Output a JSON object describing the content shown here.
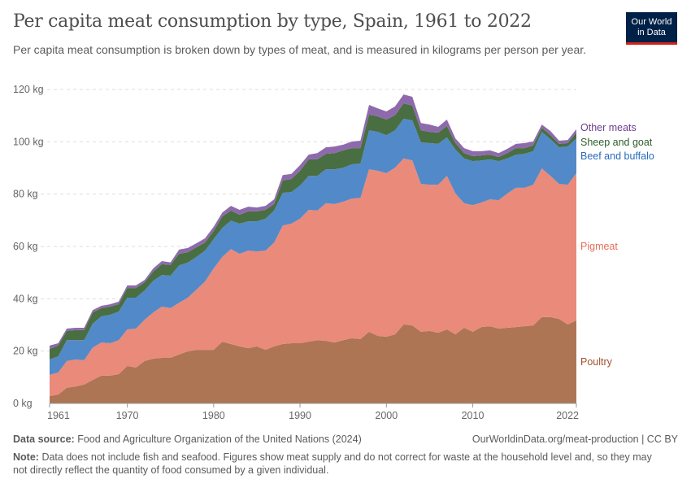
{
  "header": {
    "title": "Per capita meat consumption by type, Spain, 1961 to 2022",
    "subtitle": "Per capita meat consumption is broken down by types of meat, and is measured in kilograms per person per year.",
    "logo_line1": "Our World",
    "logo_line2": "in Data"
  },
  "footer": {
    "source_label": "Data source:",
    "source_text": "Food and Agriculture Organization of the United Nations (2024)",
    "url": "OurWorldinData.org/meat-production | CC BY",
    "note_label": "Note:",
    "note_text": "Data does not include fish and seafood. Figures show meat supply and do not correct for waste at the household level and, so they may not directly reflect the quantity of food consumed by a given individual."
  },
  "chart_data": {
    "type": "area",
    "stacked": true,
    "title": "Per capita meat consumption by type, Spain, 1961 to 2022",
    "ylim": [
      0,
      120
    ],
    "yticks": [
      0,
      20,
      40,
      60,
      80,
      100,
      120
    ],
    "ytick_labels": [
      "0 kg",
      "20 kg",
      "40 kg",
      "60 kg",
      "80 kg",
      "100 kg",
      "120 kg"
    ],
    "xticks": [
      1961,
      1970,
      1980,
      1990,
      2000,
      2010,
      2022
    ],
    "xtick_labels": [
      "1961",
      "1970",
      "1980",
      "1990",
      "2000",
      "2010",
      "2022"
    ],
    "grid": "horizontal dashed",
    "legend": "right (inline labels)",
    "x_start": 1961,
    "x_end": 2022,
    "series": [
      {
        "name": "Poultry",
        "color": "#ad7553",
        "label_color": "#a0522d",
        "values": [
          2.8,
          3.4,
          6,
          6.5,
          7.2,
          9,
          10.6,
          10.6,
          11.2,
          14.3,
          13.7,
          16.2,
          17.1,
          17.4,
          17.4,
          18.7,
          19.9,
          20.5,
          20.5,
          20.5,
          23.6,
          22.7,
          21.8,
          21.1,
          21.8,
          20.5,
          21.8,
          22.7,
          23,
          23,
          23.6,
          24.2,
          23.9,
          23.3,
          24.2,
          24.9,
          24.6,
          27.4,
          25.8,
          25.5,
          26.4,
          30.2,
          29.8,
          27.4,
          27.7,
          27,
          28.3,
          26.4,
          28.9,
          27.4,
          29.2,
          29.5,
          28.6,
          28.9,
          29.2,
          29.5,
          29.8,
          33,
          33,
          32.3,
          30.2,
          31.7
        ]
      },
      {
        "name": "Pigmeat",
        "color": "#ea8a7a",
        "label_color": "#e56e5a",
        "values": [
          8.1,
          8.4,
          10.2,
          10.3,
          9.3,
          12.4,
          12.7,
          12.4,
          13,
          14,
          14.9,
          15.8,
          17.7,
          19.6,
          19,
          19.8,
          20.5,
          23,
          26.1,
          31.1,
          32.4,
          36.3,
          35.4,
          37.3,
          36.3,
          37.9,
          39.7,
          45.3,
          45.7,
          47.6,
          50.4,
          49.5,
          52.6,
          52.9,
          52.9,
          53.4,
          54,
          62.1,
          63.1,
          62.5,
          63.7,
          63.4,
          63.1,
          56.5,
          55.9,
          56.6,
          58.7,
          53.8,
          47.6,
          48.4,
          47.6,
          48.5,
          49.1,
          51.3,
          53.2,
          52.9,
          53.8,
          56.8,
          54,
          51.6,
          53.4,
          56.3
        ]
      },
      {
        "name": "Beef and buffalo",
        "color": "#5289c8",
        "label_color": "#286bbb",
        "values": [
          5.9,
          6.2,
          8,
          7.4,
          7.7,
          9.1,
          10,
          10.9,
          10.9,
          12.1,
          11.8,
          11.2,
          12.1,
          12.1,
          12.4,
          14.3,
          13.4,
          12.5,
          11.8,
          11.2,
          11.1,
          10.9,
          11.5,
          11.2,
          11.5,
          12.2,
          12.2,
          12.5,
          12.1,
          12.7,
          13,
          13.3,
          13,
          13.3,
          13,
          13.1,
          13.1,
          14.9,
          14.9,
          14.5,
          14.3,
          15.2,
          15.3,
          15.9,
          15.9,
          15.6,
          14.7,
          16.8,
          17.1,
          16.8,
          16.1,
          15.3,
          14.9,
          13.4,
          12.7,
          13,
          12.8,
          14,
          14,
          14,
          14.6,
          13.3
        ]
      },
      {
        "name": "Sheep and goat",
        "color": "#486e42",
        "label_color": "#2c5d2a",
        "values": [
          4,
          4.1,
          3.5,
          3.8,
          3.8,
          4.3,
          3.1,
          3.1,
          2.8,
          3.7,
          3.7,
          3.1,
          3.5,
          4.1,
          4.1,
          4.4,
          4,
          3.7,
          3.1,
          3.1,
          4.4,
          3.8,
          3.4,
          3.8,
          3.8,
          3.4,
          2.5,
          4.7,
          5,
          5.6,
          6.3,
          6.3,
          5.9,
          6.2,
          6.6,
          6.2,
          5.9,
          6,
          5.9,
          6,
          5.7,
          5.9,
          5.6,
          4.6,
          4.3,
          4.3,
          4.3,
          2.5,
          2.1,
          1.9,
          1.9,
          1.8,
          1.6,
          2.1,
          2.5,
          2.2,
          2.2,
          1.6,
          1.5,
          1.3,
          1.3,
          2.2
        ]
      },
      {
        "name": "Other meats",
        "color": "#8e6aac",
        "label_color": "#6d3e91",
        "values": [
          1.3,
          0.9,
          0.9,
          0.9,
          0.9,
          0.9,
          0.9,
          0.9,
          1,
          1,
          1,
          0.9,
          1.2,
          1.2,
          1,
          1.6,
          1.6,
          1.5,
          1.6,
          1.6,
          1.5,
          1.8,
          1.9,
          1.8,
          1.5,
          1.5,
          1.8,
          2.1,
          1.9,
          2.2,
          1.8,
          2.4,
          2.5,
          2.5,
          2.2,
          2.5,
          2.8,
          3.7,
          3.1,
          3.1,
          3.4,
          3.4,
          3.4,
          2.8,
          2.8,
          2.2,
          2.5,
          1.8,
          1.9,
          1.9,
          1.6,
          1.6,
          1.5,
          1.6,
          1.6,
          1.9,
          1.5,
          1.2,
          1.6,
          1.2,
          1.2,
          1.3
        ]
      }
    ]
  }
}
